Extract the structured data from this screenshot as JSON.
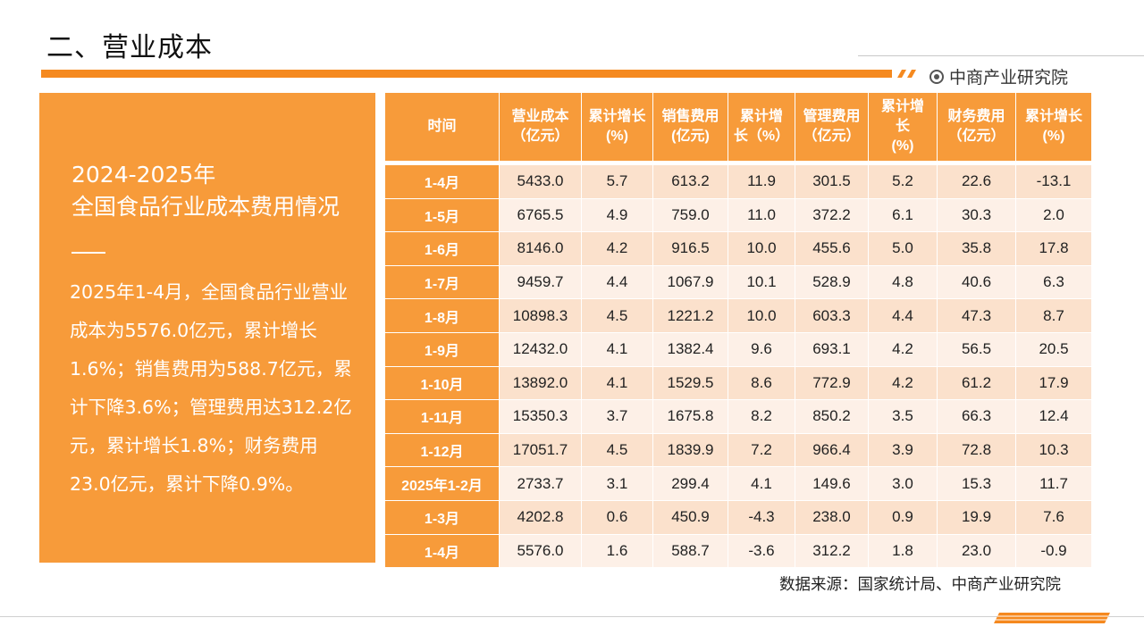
{
  "header": {
    "title": "二、营业成本",
    "brand": "中商产业研究院"
  },
  "panel": {
    "title_line1": "2024-2025年",
    "title_line2": "全国食品行业成本费用情况",
    "body": "2025年1-4月，全国食品行业营业成本为5576.0亿元，累计增长1.6%；销售费用为588.7亿元，累计下降3.6%；管理费用达312.2亿元，累计增长1.8%；财务费用23.0亿元，累计下降0.9%。"
  },
  "table": {
    "headers": [
      [
        "时间"
      ],
      [
        "营业成本",
        "（亿元）"
      ],
      [
        "累计增长",
        "(%)"
      ],
      [
        "销售费用",
        "(亿元)"
      ],
      [
        "累计增",
        "长（%）"
      ],
      [
        "管理费用",
        "（亿元）"
      ],
      [
        "累计增",
        "长",
        "(%)"
      ],
      [
        "财务费用",
        "（亿元）"
      ],
      [
        "累计增长",
        "(%)"
      ]
    ],
    "rows": [
      [
        "1-4月",
        "5433.0",
        "5.7",
        "613.2",
        "11.9",
        "301.5",
        "5.2",
        "22.6",
        "-13.1"
      ],
      [
        "1-5月",
        "6765.5",
        "4.9",
        "759.0",
        "11.0",
        "372.2",
        "6.1",
        "30.3",
        "2.0"
      ],
      [
        "1-6月",
        "8146.0",
        "4.2",
        "916.5",
        "10.0",
        "455.6",
        "5.0",
        "35.8",
        "17.8"
      ],
      [
        "1-7月",
        "9459.7",
        "4.4",
        "1067.9",
        "10.1",
        "528.9",
        "4.8",
        "40.6",
        "6.3"
      ],
      [
        "1-8月",
        "10898.3",
        "4.5",
        "1221.2",
        "10.0",
        "603.3",
        "4.4",
        "47.3",
        "8.7"
      ],
      [
        "1-9月",
        "12432.0",
        "4.1",
        "1382.4",
        "9.6",
        "693.1",
        "4.2",
        "56.5",
        "20.5"
      ],
      [
        "1-10月",
        "13892.0",
        "4.1",
        "1529.5",
        "8.6",
        "772.9",
        "4.2",
        "61.2",
        "17.9"
      ],
      [
        "1-11月",
        "15350.3",
        "3.7",
        "1675.8",
        "8.2",
        "850.2",
        "3.5",
        "66.3",
        "12.4"
      ],
      [
        "1-12月",
        "17051.7",
        "4.5",
        "1839.9",
        "7.2",
        "966.4",
        "3.9",
        "72.8",
        "10.3"
      ],
      [
        "2025年1-2月",
        "2733.7",
        "3.1",
        "299.4",
        "4.1",
        "149.6",
        "3.0",
        "15.3",
        "11.7"
      ],
      [
        "1-3月",
        "4202.8",
        "0.6",
        "450.9",
        "-4.3",
        "238.0",
        "0.9",
        "19.9",
        "7.6"
      ],
      [
        "1-4月",
        "5576.0",
        "1.6",
        "588.7",
        "-3.6",
        "312.2",
        "1.8",
        "23.0",
        "-0.9"
      ]
    ]
  },
  "footer": {
    "source": "数据来源：国家统计局、中商产业研究院"
  },
  "colors": {
    "accent": "#f79b3a",
    "bar": "#f5891f",
    "row_odd": "#fbe1cc",
    "row_even": "#fdf0e7"
  }
}
